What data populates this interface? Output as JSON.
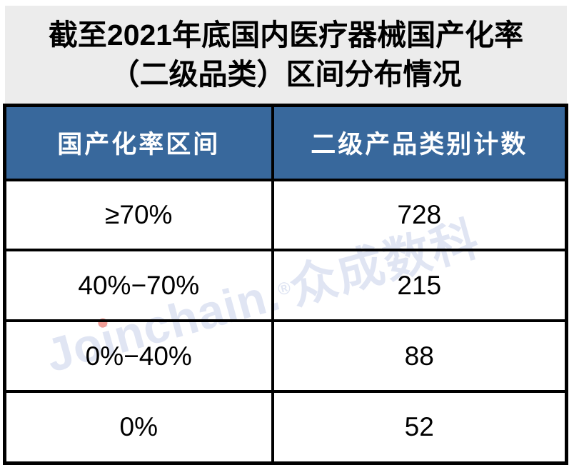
{
  "title": {
    "line1": "截至2021年底国内医疗器械国产化率",
    "line2": "（二级品类）区间分布情况"
  },
  "table": {
    "columns": [
      "国产化率区间",
      "二级产品类别计数"
    ],
    "rows": [
      {
        "range": "≥70%",
        "count": "728"
      },
      {
        "range": "40%−70%",
        "count": "215"
      },
      {
        "range": "0%−40%",
        "count": "88"
      },
      {
        "range": "0%",
        "count": "52"
      }
    ]
  },
  "watermark": {
    "latin_prefix": "Jo",
    "latin_i": "i",
    "latin_suffix": "nchain.",
    "registered_mark": "®",
    "cjk": "众成数科"
  },
  "colors": {
    "header_bg": "#38689c",
    "header_text": "#ffffff",
    "title_bg": "#ececec",
    "border": "#000000",
    "watermark_text": "#e0e5f3",
    "watermark_i_dot": "#ef9d96"
  },
  "chart_data": {
    "type": "table",
    "title": "截至2021年底国内医疗器械国产化率（二级品类）区间分布情况",
    "columns": [
      "国产化率区间",
      "二级产品类别计数"
    ],
    "rows": [
      [
        "≥70%",
        728
      ],
      [
        "40%-70%",
        215
      ],
      [
        "0%-40%",
        88
      ],
      [
        "0%",
        52
      ]
    ]
  }
}
